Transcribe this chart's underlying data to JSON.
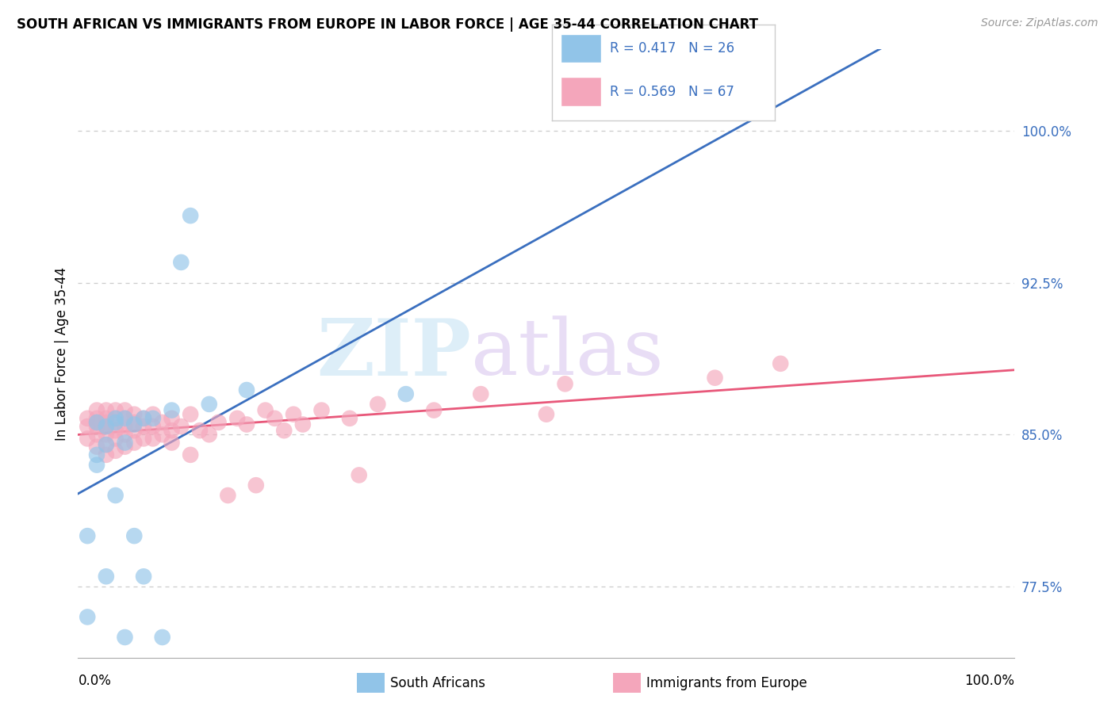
{
  "title": "SOUTH AFRICAN VS IMMIGRANTS FROM EUROPE IN LABOR FORCE | AGE 35-44 CORRELATION CHART",
  "source": "Source: ZipAtlas.com",
  "ylabel": "In Labor Force | Age 35-44",
  "legend_label1": "South Africans",
  "legend_label2": "Immigrants from Europe",
  "r1": 0.417,
  "n1": 26,
  "r2": 0.569,
  "n2": 67,
  "blue_color": "#91c4e8",
  "pink_color": "#f4a6bb",
  "blue_line_color": "#3a6fbf",
  "pink_line_color": "#e8587a",
  "xlim": [
    0.0,
    1.0
  ],
  "ylim": [
    0.74,
    1.04
  ],
  "yticks": [
    0.775,
    0.85,
    0.925,
    1.0
  ],
  "ytick_labels": [
    "77.5%",
    "85.0%",
    "92.5%",
    "100.0%"
  ],
  "grid_ticks": [
    0.775,
    0.85,
    0.925,
    1.0
  ],
  "sa_x": [
    0.01,
    0.01,
    0.02,
    0.02,
    0.02,
    0.03,
    0.03,
    0.03,
    0.04,
    0.04,
    0.04,
    0.05,
    0.05,
    0.05,
    0.06,
    0.06,
    0.07,
    0.07,
    0.08,
    0.09,
    0.1,
    0.11,
    0.12,
    0.14,
    0.18,
    0.35
  ],
  "sa_y": [
    0.76,
    0.8,
    0.835,
    0.84,
    0.856,
    0.78,
    0.845,
    0.854,
    0.82,
    0.856,
    0.858,
    0.75,
    0.846,
    0.858,
    0.8,
    0.855,
    0.78,
    0.858,
    0.858,
    0.75,
    0.862,
    0.935,
    0.958,
    0.865,
    0.872,
    0.87
  ],
  "eu_x": [
    0.01,
    0.01,
    0.01,
    0.02,
    0.02,
    0.02,
    0.02,
    0.02,
    0.02,
    0.03,
    0.03,
    0.03,
    0.03,
    0.03,
    0.03,
    0.03,
    0.04,
    0.04,
    0.04,
    0.04,
    0.04,
    0.04,
    0.05,
    0.05,
    0.05,
    0.05,
    0.05,
    0.06,
    0.06,
    0.06,
    0.06,
    0.07,
    0.07,
    0.07,
    0.08,
    0.08,
    0.08,
    0.09,
    0.09,
    0.1,
    0.1,
    0.1,
    0.11,
    0.12,
    0.12,
    0.13,
    0.14,
    0.15,
    0.16,
    0.17,
    0.18,
    0.19,
    0.2,
    0.21,
    0.22,
    0.23,
    0.24,
    0.26,
    0.29,
    0.3,
    0.32,
    0.38,
    0.43,
    0.5,
    0.52,
    0.68,
    0.75
  ],
  "eu_y": [
    0.848,
    0.854,
    0.858,
    0.844,
    0.85,
    0.854,
    0.856,
    0.858,
    0.862,
    0.84,
    0.845,
    0.85,
    0.854,
    0.856,
    0.858,
    0.862,
    0.842,
    0.848,
    0.852,
    0.856,
    0.858,
    0.862,
    0.844,
    0.85,
    0.854,
    0.858,
    0.862,
    0.846,
    0.852,
    0.856,
    0.86,
    0.848,
    0.854,
    0.858,
    0.848,
    0.854,
    0.86,
    0.85,
    0.856,
    0.846,
    0.852,
    0.858,
    0.854,
    0.84,
    0.86,
    0.852,
    0.85,
    0.856,
    0.82,
    0.858,
    0.855,
    0.825,
    0.862,
    0.858,
    0.852,
    0.86,
    0.855,
    0.862,
    0.858,
    0.83,
    0.865,
    0.862,
    0.87,
    0.86,
    0.875,
    0.878,
    0.885
  ]
}
